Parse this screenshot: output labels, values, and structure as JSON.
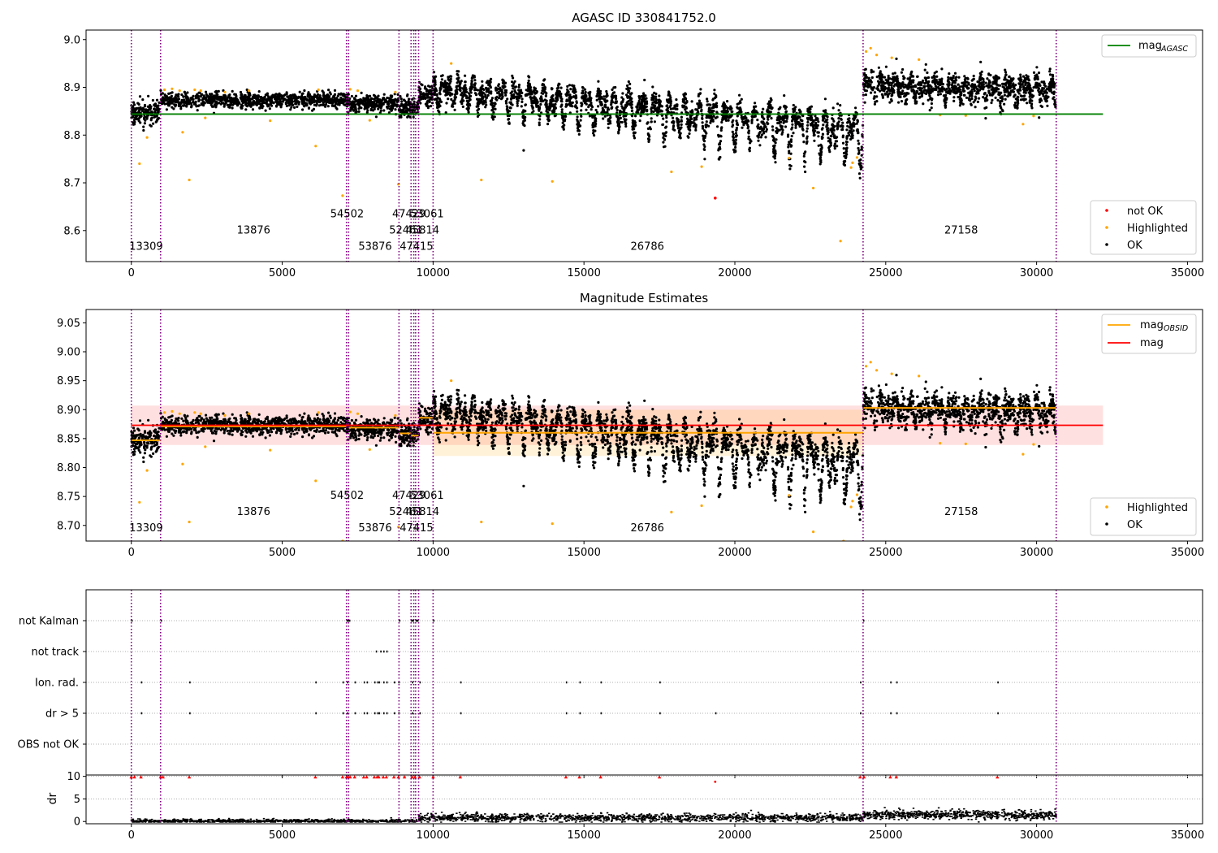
{
  "chart_data": [
    {
      "type": "scatter",
      "title": "AGASC ID 330841752.0",
      "xlim": [
        -1500,
        35500
      ],
      "ylim": [
        8.535,
        9.02
      ],
      "xticks": [
        0,
        5000,
        10000,
        15000,
        20000,
        25000,
        30000,
        35000
      ],
      "yticks": [
        8.6,
        8.7,
        8.8,
        8.9,
        9.0
      ],
      "ytick_labels": [
        "8.6",
        "8.7",
        "8.8",
        "8.9",
        "9.0"
      ],
      "legend_top": [
        {
          "label": "mag",
          "sub": "AGASC",
          "color": "#008000"
        }
      ],
      "legend_bottom": [
        {
          "label": "not OK",
          "color": "#ff0000"
        },
        {
          "label": "Highlighted",
          "color": "#ffa500"
        },
        {
          "label": "OK",
          "color": "#000000"
        }
      ],
      "mag_agasc": 8.844,
      "obsid_boundaries": [
        0,
        970,
        7130,
        7200,
        8870,
        9270,
        9360,
        9420,
        9520,
        10000,
        24250,
        30650
      ],
      "obsid_labels": [
        {
          "text": "13309",
          "x": 490,
          "y": 8.56
        },
        {
          "text": "13876",
          "x": 4050,
          "y": 8.594
        },
        {
          "text": "54502",
          "x": 7150,
          "y": 8.628
        },
        {
          "text": "53876",
          "x": 8080,
          "y": 8.56
        },
        {
          "text": "47429",
          "x": 9200,
          "y": 8.628
        },
        {
          "text": "52461",
          "x": 9100,
          "y": 8.594
        },
        {
          "text": "47415",
          "x": 9450,
          "y": 8.56
        },
        {
          "text": "45814",
          "x": 9650,
          "y": 8.594
        },
        {
          "text": "53061",
          "x": 9800,
          "y": 8.628
        },
        {
          "text": "26786",
          "x": 17100,
          "y": 8.56
        },
        {
          "text": "27158",
          "x": 27500,
          "y": 8.594
        }
      ],
      "segments": [
        {
          "x0": 0,
          "x1": 970,
          "mean": 8.849,
          "spread": 0.012,
          "trend": 0,
          "osc_amp": 0,
          "n": 160
        },
        {
          "x0": 970,
          "x1": 7130,
          "mean": 8.873,
          "spread": 0.008,
          "trend": 0,
          "osc_amp": 0,
          "n": 900
        },
        {
          "x0": 7130,
          "x1": 7200,
          "mean": 8.873,
          "spread": 0.008,
          "trend": 0,
          "osc_amp": 0,
          "n": 20
        },
        {
          "x0": 7200,
          "x1": 8870,
          "mean": 8.867,
          "spread": 0.009,
          "trend": 0,
          "osc_amp": 0,
          "n": 260
        },
        {
          "x0": 8870,
          "x1": 9520,
          "mean": 8.856,
          "spread": 0.01,
          "trend": 0,
          "osc_amp": 0,
          "n": 110
        },
        {
          "x0": 9520,
          "x1": 10000,
          "mean": 8.885,
          "spread": 0.012,
          "trend": 0,
          "osc_amp": 0,
          "n": 80
        },
        {
          "x0": 10000,
          "x1": 24250,
          "mean": 8.9,
          "spread": 0.012,
          "trend": -0.085,
          "osc_amp": 0.065,
          "n": 2600
        },
        {
          "x0": 24250,
          "x1": 30650,
          "mean": 8.905,
          "spread": 0.014,
          "trend": -0.005,
          "osc_amp": 0.03,
          "n": 1100
        }
      ],
      "highlighted_points": [
        [
          270,
          8.74
        ],
        [
          520,
          8.795
        ],
        [
          1700,
          8.806
        ],
        [
          1920,
          8.706
        ],
        [
          2450,
          8.836
        ],
        [
          4600,
          8.83
        ],
        [
          6110,
          8.777
        ],
        [
          7000,
          8.673
        ],
        [
          7900,
          8.831
        ],
        [
          8850,
          8.697
        ],
        [
          11600,
          8.706
        ],
        [
          13950,
          8.703
        ],
        [
          17900,
          8.723
        ],
        [
          18900,
          8.734
        ],
        [
          22600,
          8.689
        ],
        [
          23500,
          8.578
        ],
        [
          21800,
          8.752
        ],
        [
          23850,
          8.732
        ],
        [
          23900,
          8.742
        ],
        [
          24050,
          8.753
        ],
        [
          24350,
          8.975
        ],
        [
          24500,
          8.982
        ],
        [
          24700,
          8.968
        ],
        [
          25200,
          8.962
        ],
        [
          26100,
          8.958
        ],
        [
          26800,
          8.842
        ],
        [
          27650,
          8.841
        ],
        [
          29550,
          8.823
        ],
        [
          29900,
          8.84
        ],
        [
          1100,
          8.895
        ],
        [
          1350,
          8.897
        ],
        [
          1600,
          8.893
        ],
        [
          2100,
          8.895
        ],
        [
          2300,
          8.893
        ],
        [
          3100,
          8.89
        ],
        [
          3900,
          8.893
        ],
        [
          6200,
          8.895
        ],
        [
          7250,
          8.896
        ],
        [
          7500,
          8.893
        ],
        [
          8750,
          8.89
        ],
        [
          10600,
          8.95
        ]
      ],
      "not_ok_points": [
        [
          19350,
          8.668
        ]
      ],
      "ok_outliers": [
        [
          13000,
          8.768
        ]
      ]
    },
    {
      "type": "scatter",
      "title": "Magnitude Estimates",
      "xlim": [
        -1500,
        35500
      ],
      "ylim": [
        8.673,
        9.073
      ],
      "xticks": [
        0,
        5000,
        10000,
        15000,
        20000,
        25000,
        30000,
        35000
      ],
      "yticks": [
        8.7,
        8.75,
        8.8,
        8.85,
        8.9,
        8.95,
        9.0,
        9.05
      ],
      "ytick_labels": [
        "8.70",
        "8.75",
        "8.80",
        "8.85",
        "8.90",
        "8.95",
        "9.00",
        "9.05"
      ],
      "legend_top": [
        {
          "label": "mag",
          "sub": "OBSID",
          "color": "#ffa500"
        },
        {
          "label": "mag",
          "sub": "",
          "color": "#ff0000"
        }
      ],
      "legend_bottom": [
        {
          "label": "Highlighted",
          "color": "#ffa500"
        },
        {
          "label": "OK",
          "color": "#000000"
        }
      ],
      "mag_mean": 8.873,
      "mag_band": [
        8.839,
        8.907
      ],
      "obsid_mag": [
        {
          "x0": 0,
          "x1": 970,
          "mag": 8.847
        },
        {
          "x0": 970,
          "x1": 7130,
          "mag": 8.871
        },
        {
          "x0": 7130,
          "x1": 7200,
          "mag": 8.873
        },
        {
          "x0": 7200,
          "x1": 8870,
          "mag": 8.869
        },
        {
          "x0": 8870,
          "x1": 9270,
          "mag": 8.859
        },
        {
          "x0": 9270,
          "x1": 9520,
          "mag": 8.855
        },
        {
          "x0": 9520,
          "x1": 10000,
          "mag": 8.886
        },
        {
          "x0": 10000,
          "x1": 24250,
          "mag": 8.86
        },
        {
          "x0": 24250,
          "x1": 30650,
          "mag": 8.903
        }
      ],
      "obsid_band": {
        "x0": 10000,
        "x1": 24250,
        "lo": 8.82,
        "hi": 8.9
      },
      "obsid_labels": [
        {
          "text": "13309",
          "x": 490,
          "y": 8.69
        },
        {
          "text": "13876",
          "x": 4050,
          "y": 8.718
        },
        {
          "text": "54502",
          "x": 7150,
          "y": 8.746
        },
        {
          "text": "53876",
          "x": 8080,
          "y": 8.69
        },
        {
          "text": "47429",
          "x": 9200,
          "y": 8.746
        },
        {
          "text": "52461",
          "x": 9100,
          "y": 8.718
        },
        {
          "text": "47415",
          "x": 9450,
          "y": 8.69
        },
        {
          "text": "45814",
          "x": 9650,
          "y": 8.718
        },
        {
          "text": "53061",
          "x": 9800,
          "y": 8.746
        },
        {
          "text": "26786",
          "x": 17100,
          "y": 8.69
        },
        {
          "text": "27158",
          "x": 27500,
          "y": 8.718
        }
      ]
    },
    {
      "type": "scatter",
      "title": "",
      "xlim": [
        -1500,
        35500
      ],
      "xticks": [
        0,
        5000,
        10000,
        15000,
        20000,
        25000,
        30000,
        35000
      ],
      "flag_rows": [
        "not Kalman",
        "not track",
        "Ion. rad.",
        "dr > 5",
        "OBS not OK"
      ],
      "flag_points": {
        "not Kalman": [
          [
            0,
            30
          ],
          [
            970,
            30
          ],
          [
            7130,
            80
          ],
          [
            7200,
            60
          ],
          [
            8870,
            30
          ],
          [
            9270,
            100
          ],
          [
            9420,
            100
          ],
          [
            10000,
            30
          ],
          [
            24250,
            40
          ]
        ],
        "not track": [
          [
            8100,
            1
          ],
          [
            8250,
            1
          ],
          [
            8350,
            1
          ],
          [
            8450,
            1
          ]
        ],
        "Ion. rad.": [
          [
            320,
            1
          ],
          [
            1920,
            1
          ],
          [
            6100,
            1
          ],
          [
            7000,
            1
          ],
          [
            7150,
            1
          ],
          [
            7400,
            1
          ],
          [
            7700,
            1
          ],
          [
            7800,
            1
          ],
          [
            8050,
            1
          ],
          [
            8150,
            1
          ],
          [
            8200,
            1
          ],
          [
            8350,
            1
          ],
          [
            8450,
            1
          ],
          [
            8700,
            1
          ],
          [
            8850,
            1
          ],
          [
            9300,
            1
          ],
          [
            9550,
            1
          ],
          [
            10900,
            1
          ],
          [
            14400,
            1
          ],
          [
            14850,
            1
          ],
          [
            15550,
            1
          ],
          [
            17500,
            1
          ],
          [
            24150,
            1
          ],
          [
            25150,
            1
          ],
          [
            25350,
            1
          ],
          [
            28700,
            1
          ]
        ],
        "dr > 5": [
          [
            320,
            1
          ],
          [
            1920,
            1
          ],
          [
            6100,
            1
          ],
          [
            7000,
            1
          ],
          [
            7150,
            1
          ],
          [
            7400,
            1
          ],
          [
            7700,
            1
          ],
          [
            7800,
            1
          ],
          [
            8050,
            1
          ],
          [
            8150,
            1
          ],
          [
            8200,
            1
          ],
          [
            8350,
            1
          ],
          [
            8450,
            1
          ],
          [
            8700,
            1
          ],
          [
            8850,
            1
          ],
          [
            9300,
            1
          ],
          [
            9550,
            1
          ],
          [
            10900,
            1
          ],
          [
            14400,
            1
          ],
          [
            14850,
            1
          ],
          [
            15550,
            1
          ],
          [
            17500,
            1
          ],
          [
            19350,
            1
          ],
          [
            24150,
            1
          ],
          [
            25150,
            1
          ],
          [
            25350,
            1
          ],
          [
            28700,
            1
          ]
        ],
        "OBS not OK": []
      }
    },
    {
      "type": "scatter",
      "ylabel": "dr",
      "xlim": [
        -1500,
        35500
      ],
      "ylim": [
        -0.5,
        10.3
      ],
      "xticks": [
        0,
        5000,
        10000,
        15000,
        20000,
        25000,
        30000,
        35000
      ],
      "xtick_labels": [
        "0",
        "5000",
        "10000",
        "15000",
        "20000",
        "25000",
        "30000",
        "35000"
      ],
      "yticks": [
        0,
        5,
        10
      ],
      "ytick_labels": [
        "0",
        "5",
        "10"
      ],
      "red_markers_y": 9.8,
      "red_markers_x": [
        0,
        100,
        320,
        970,
        1050,
        1920,
        6100,
        7000,
        7130,
        7180,
        7250,
        7400,
        7700,
        7800,
        8050,
        8150,
        8200,
        8350,
        8450,
        8700,
        8850,
        9050,
        9300,
        9400,
        9550,
        10000,
        10900,
        14400,
        14850,
        15550,
        17500,
        24150,
        24280,
        25150,
        25350,
        28700
      ],
      "outlier_red": [
        [
          19350,
          8.8
        ]
      ],
      "dr_segments": [
        {
          "x0": 0,
          "x1": 9520,
          "mean": 0.25,
          "spread": 0.2,
          "n": 900
        },
        {
          "x0": 9520,
          "x1": 24250,
          "mean": 1.0,
          "spread": 0.45,
          "n": 1400
        },
        {
          "x0": 24250,
          "x1": 30650,
          "mean": 1.6,
          "spread": 0.5,
          "n": 700
        }
      ]
    }
  ]
}
